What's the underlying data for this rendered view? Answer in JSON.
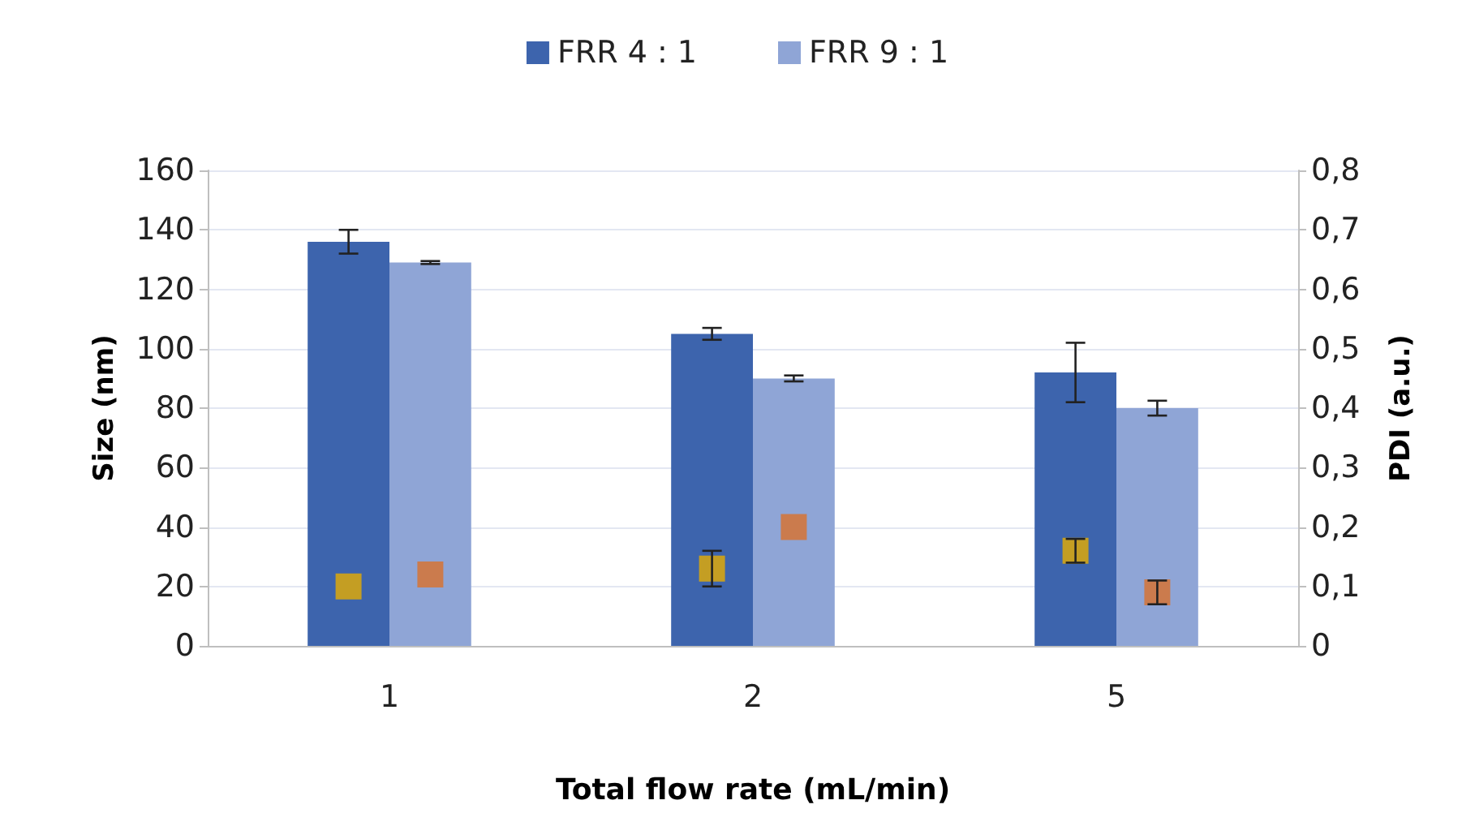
{
  "chart_data": {
    "type": "bar",
    "xlabel": "Total flow rate (mL/min)",
    "ylabel": "Size (nm)",
    "y2label": "PDI (a.u.)",
    "categories": [
      "1",
      "2",
      "5"
    ],
    "series": [
      {
        "name": "FRR 4 : 1",
        "color": "#3d64ad",
        "values": [
          136,
          105,
          92
        ],
        "errors": [
          4,
          2,
          10
        ]
      },
      {
        "name": "FRR 9 : 1",
        "color": "#8fa5d6",
        "values": [
          129,
          90,
          80
        ],
        "errors": [
          0.5,
          1,
          2.5
        ]
      },
      {
        "type": "scatter",
        "axis": "y2",
        "color": "#e6ad00",
        "x": [
          "1",
          "2",
          "5"
        ],
        "values": [
          0.1,
          0.13,
          0.16
        ],
        "errors": [
          null,
          0.03,
          0.02
        ]
      },
      {
        "type": "scatter",
        "axis": "y2",
        "color": "#d9702a",
        "x": [
          "1",
          "2",
          "5"
        ],
        "values": [
          0.12,
          0.2,
          0.09
        ],
        "errors": [
          null,
          null,
          0.02
        ]
      }
    ],
    "ylim": [
      0,
      160
    ],
    "yticks": [
      0,
      20,
      40,
      60,
      80,
      100,
      120,
      140,
      160
    ],
    "y2lim": [
      0,
      0.8
    ],
    "y2ticks": [
      {
        "value": 0,
        "label": "0"
      },
      {
        "value": 0.1,
        "label": "0,1"
      },
      {
        "value": 0.2,
        "label": "0,2"
      },
      {
        "value": 0.3,
        "label": "0,3"
      },
      {
        "value": 0.4,
        "label": "0,4"
      },
      {
        "value": 0.5,
        "label": "0,5"
      },
      {
        "value": 0.6,
        "label": "0,6"
      },
      {
        "value": 0.7,
        "label": "0,7"
      },
      {
        "value": 0.8,
        "label": "0,8"
      }
    ],
    "grid": "y",
    "legend": "top",
    "marker": "square"
  }
}
